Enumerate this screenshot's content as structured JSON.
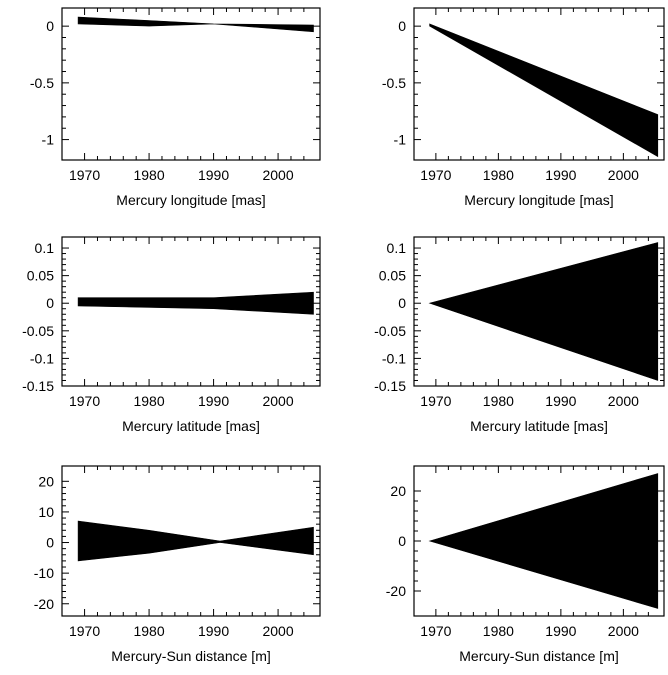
{
  "chart_data": [
    {
      "type": "area",
      "xlabel": "Mercury longitude [mas]",
      "x_ticks": [
        1970,
        1980,
        1990,
        2000
      ],
      "y_ticks": [
        0,
        -0.5,
        -1
      ],
      "y_tick_labels": [
        "0",
        "-0.5",
        "-1"
      ],
      "xlim": [
        1966.5,
        2006.5
      ],
      "ylim": [
        -1.18,
        0.16
      ],
      "x": [
        1969,
        1980,
        1990,
        2005.5
      ],
      "upper": [
        0.08,
        0.05,
        0.02,
        0.01
      ],
      "lower": [
        0.02,
        0.0,
        0.02,
        -0.05
      ]
    },
    {
      "type": "area",
      "xlabel": "Mercury longitude [mas]",
      "x_ticks": [
        1970,
        1980,
        1990,
        2000
      ],
      "y_ticks": [
        0,
        -0.5,
        -1
      ],
      "y_tick_labels": [
        "0",
        "-0.5",
        "-1"
      ],
      "xlim": [
        1966.5,
        2006.5
      ],
      "ylim": [
        -1.18,
        0.16
      ],
      "x": [
        1969,
        2005.5
      ],
      "upper": [
        0.02,
        -0.78
      ],
      "lower": [
        0.0,
        -1.15
      ]
    },
    {
      "type": "area",
      "xlabel": "Mercury latitude [mas]",
      "x_ticks": [
        1970,
        1980,
        1990,
        2000
      ],
      "y_ticks": [
        0.1,
        0.05,
        0,
        -0.05,
        -0.1,
        -0.15
      ],
      "y_tick_labels": [
        "0.1",
        "0.05",
        "0",
        "-0.05",
        "-0.1",
        "-0.15"
      ],
      "xlim": [
        1966.5,
        2006.5
      ],
      "ylim": [
        -0.15,
        0.12
      ],
      "x": [
        1969,
        1990,
        2005.5
      ],
      "upper": [
        0.01,
        0.01,
        0.02
      ],
      "lower": [
        -0.005,
        -0.01,
        -0.02
      ]
    },
    {
      "type": "area",
      "xlabel": "Mercury latitude [mas]",
      "x_ticks": [
        1970,
        1980,
        1990,
        2000
      ],
      "y_ticks": [
        0.1,
        0.05,
        0,
        -0.05,
        -0.1,
        -0.15
      ],
      "y_tick_labels": [
        "0.1",
        "0.05",
        "0",
        "-0.05",
        "-0.1",
        "-0.15"
      ],
      "xlim": [
        1966.5,
        2006.5
      ],
      "ylim": [
        -0.15,
        0.12
      ],
      "x": [
        1969,
        2005.5
      ],
      "upper": [
        0.0,
        0.11
      ],
      "lower": [
        0.0,
        -0.14
      ]
    },
    {
      "type": "area",
      "xlabel": "Mercury-Sun distance [m]",
      "x_ticks": [
        1970,
        1980,
        1990,
        2000
      ],
      "y_ticks": [
        20,
        10,
        0,
        -10,
        -20
      ],
      "y_tick_labels": [
        "20",
        "10",
        "0",
        "-10",
        "-20"
      ],
      "xlim": [
        1966.5,
        2006.5
      ],
      "ylim": [
        -24,
        25
      ],
      "x": [
        1969,
        1980,
        1991,
        2005.5
      ],
      "upper": [
        7,
        4,
        0.5,
        5
      ],
      "lower": [
        -6,
        -3.5,
        0,
        -4
      ]
    },
    {
      "type": "area",
      "xlabel": "Mercury-Sun distance [m]",
      "x_ticks": [
        1970,
        1980,
        1990,
        2000
      ],
      "y_ticks": [
        20,
        0,
        -20
      ],
      "y_tick_labels": [
        "20",
        "0",
        "-20"
      ],
      "xlim": [
        1966.5,
        2006.5
      ],
      "ylim": [
        -30,
        30
      ],
      "x": [
        1969,
        2005.5
      ],
      "upper": [
        0,
        27
      ],
      "lower": [
        0,
        -27
      ]
    }
  ]
}
